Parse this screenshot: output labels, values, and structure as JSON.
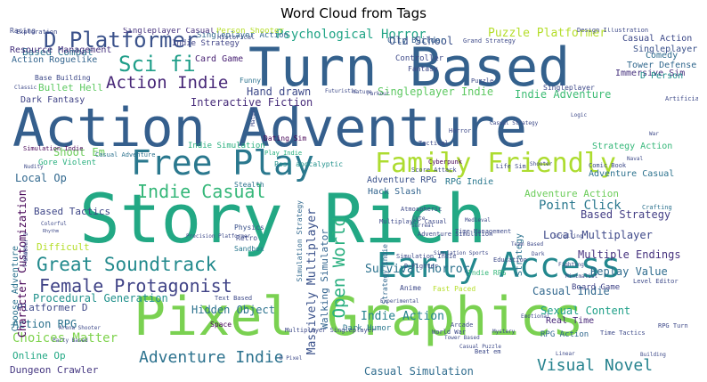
{
  "chart_data": {
    "type": "word_cloud",
    "title": "Word Cloud from Tags",
    "colormap": "viridis",
    "background": "#ffffff",
    "words": [
      {
        "text": "Story Rich",
        "color": "#22a884"
      },
      {
        "text": "Action Adventure",
        "color": "#355f8d"
      },
      {
        "text": "Turn Based",
        "color": "#34618d"
      },
      {
        "text": "Pixel Graphics",
        "color": "#7ad151"
      },
      {
        "text": "Free Play",
        "color": "#2a788e"
      },
      {
        "text": "Family Friendly",
        "color": "#addc30"
      },
      {
        "text": "Early Access",
        "color": "#23888e"
      },
      {
        "text": "Great Soundtrack",
        "color": "#238a8d"
      },
      {
        "text": "Female Protagonist",
        "color": "#414487"
      },
      {
        "text": "D Platformer",
        "color": "#3b528b"
      },
      {
        "text": "Sci fi",
        "color": "#1f9e89"
      },
      {
        "text": "Action Indie",
        "color": "#482878"
      },
      {
        "text": "Indie Casual",
        "color": "#35b779"
      },
      {
        "text": "Adventure Indie",
        "color": "#2c728e"
      },
      {
        "text": "Visual Novel",
        "color": "#26828e"
      },
      {
        "text": "Psychological Horror",
        "color": "#20a486"
      },
      {
        "text": "Open World",
        "color": "#29af7f"
      },
      {
        "text": "Hand drawn",
        "color": "#3e4a89"
      },
      {
        "text": "Interactive Fiction",
        "color": "#472c7a"
      },
      {
        "text": "Singleplayer Indie",
        "color": "#5ec962"
      },
      {
        "text": "Indie Adventure",
        "color": "#3dbc74"
      },
      {
        "text": "Point Click",
        "color": "#2a788e"
      },
      {
        "text": "Local Multiplayer",
        "color": "#3e4989"
      },
      {
        "text": "Multiple Endings",
        "color": "#46327e"
      },
      {
        "text": "Adventure Action",
        "color": "#6ccd5a"
      },
      {
        "text": "Based Strategy",
        "color": "#433e85"
      },
      {
        "text": "Replay Value",
        "color": "#2f6c8e"
      },
      {
        "text": "Casual Indie",
        "color": "#31688e"
      },
      {
        "text": "Sexual Content",
        "color": "#1fa088"
      },
      {
        "text": "Massively Multiplayer",
        "color": "#3b528b"
      },
      {
        "text": "Walking Simulator",
        "color": "#32648e"
      },
      {
        "text": "Survival Horror",
        "color": "#2c728e"
      },
      {
        "text": "Indie Action",
        "color": "#25838e"
      },
      {
        "text": "Choices Matter",
        "color": "#7fd34e"
      },
      {
        "text": "Action RPG",
        "color": "#2c728e"
      },
      {
        "text": "Procedural Generation",
        "color": "#21918c"
      },
      {
        "text": "Hidden Object",
        "color": "#2c728e"
      },
      {
        "text": "Casual Simulation",
        "color": "#2f6c8e"
      },
      {
        "text": "Shoot Em",
        "color": "#6ccd5a"
      },
      {
        "text": "Local Op",
        "color": "#31688e"
      },
      {
        "text": "Based Tactics",
        "color": "#3f4788"
      },
      {
        "text": "Difficult",
        "color": "#b5de2b"
      },
      {
        "text": "Character Customization",
        "color": "#440154"
      },
      {
        "text": "Platformer D",
        "color": "#3e4a89"
      },
      {
        "text": "Online Op",
        "color": "#22a884"
      },
      {
        "text": "Dungeon Crawler",
        "color": "#453781"
      },
      {
        "text": "Choose Adventure",
        "color": "#2c728e"
      },
      {
        "text": "Action Roguelike",
        "color": "#32648e"
      },
      {
        "text": "Based Combat",
        "color": "#2c728e"
      },
      {
        "text": "Bullet Hell",
        "color": "#5ec962"
      },
      {
        "text": "Dark Fantasy",
        "color": "#414487"
      },
      {
        "text": "Resource Management",
        "color": "#46327e"
      },
      {
        "text": "Card Game",
        "color": "#482173"
      },
      {
        "text": "Old School",
        "color": "#3b528b"
      },
      {
        "text": "City Builder",
        "color": "#355f8d"
      },
      {
        "text": "Puzzle Platformer",
        "color": "#b5de2b"
      },
      {
        "text": "Casual Action",
        "color": "#3e4a89"
      },
      {
        "text": "Singleplayer D",
        "color": "#3b528b"
      },
      {
        "text": "Comedy",
        "color": "#2f6c8e"
      },
      {
        "text": "Tower Defense",
        "color": "#31688e"
      },
      {
        "text": "Immersive Sim",
        "color": "#46327e"
      },
      {
        "text": "D Person",
        "color": "#21918c"
      },
      {
        "text": "Dark Humor",
        "color": "#2a788e"
      },
      {
        "text": "Indie Simulation",
        "color": "#2ab07f"
      },
      {
        "text": "Adventure RPG",
        "color": "#3b528b"
      },
      {
        "text": "RPG Indie",
        "color": "#2a788e"
      },
      {
        "text": "Hack Slash",
        "color": "#32648e"
      },
      {
        "text": "Strategy Action",
        "color": "#35b779"
      },
      {
        "text": "Adventure Casual",
        "color": "#2c728e"
      },
      {
        "text": "Controller",
        "color": "#3e4a89"
      },
      {
        "text": "Fantasy",
        "color": "#3e4a89"
      },
      {
        "text": "Funny",
        "color": "#2c728e"
      },
      {
        "text": "Anime",
        "color": "#3e4989"
      },
      {
        "text": "Physics",
        "color": "#3b528b"
      },
      {
        "text": "Retro",
        "color": "#3e4a89"
      },
      {
        "text": "Sandbox",
        "color": "#2a788e"
      },
      {
        "text": "Stealth",
        "color": "#2c728e"
      },
      {
        "text": "Real Time",
        "color": "#482878"
      },
      {
        "text": "RPG Action",
        "color": "#31688e"
      },
      {
        "text": "Strategy",
        "color": "#2c728e"
      },
      {
        "text": "Fast Paced",
        "color": "#b5de2b"
      },
      {
        "text": "Board Game",
        "color": "#414487"
      },
      {
        "text": "Gore Violent",
        "color": "#2ab07f"
      },
      {
        "text": "Dating Sim",
        "color": "#440154"
      },
      {
        "text": "Play Indie",
        "color": "#29af7f"
      },
      {
        "text": "Post apocalyptic",
        "color": "#21918c"
      },
      {
        "text": "Simulation Strategy",
        "color": "#31688e"
      },
      {
        "text": "Simulation Indie",
        "color": "#440154"
      },
      {
        "text": "Casual Adventure",
        "color": "#2c728e"
      },
      {
        "text": "Singleplayer Action",
        "color": "#31688e"
      },
      {
        "text": "Singleplayer Casual",
        "color": "#46327e"
      },
      {
        "text": "Indie Strategy",
        "color": "#414487"
      },
      {
        "text": "Person Shooter",
        "color": "#b5de2b"
      },
      {
        "text": "Base Building",
        "color": "#3e4a89"
      },
      {
        "text": "Space",
        "color": "#440154"
      },
      {
        "text": "Strategy Indie",
        "color": "#31688e"
      },
      {
        "text": "Indie RPG",
        "color": "#35b779"
      },
      {
        "text": "Singleplayer",
        "color": "#3e4989"
      },
      {
        "text": "Crafting",
        "color": "#2c728e"
      },
      {
        "text": "Tactical",
        "color": "#3e4a89"
      },
      {
        "text": "Cyberpunk",
        "color": "#440154"
      },
      {
        "text": "Exploration",
        "color": "#3e4a89"
      },
      {
        "text": "Historical",
        "color": "#3e4a89"
      },
      {
        "text": "Grand Strategy",
        "color": "#3e4a89"
      },
      {
        "text": "Design Illustration",
        "color": "#3e4a89"
      },
      {
        "text": "Score Attack",
        "color": "#3e4a89"
      },
      {
        "text": "Nature",
        "color": "#3e4a89"
      },
      {
        "text": "Futuristic",
        "color": "#3e4a89"
      },
      {
        "text": "Parkour",
        "color": "#3e4a89"
      },
      {
        "text": "Cute",
        "color": "#3e4a89"
      },
      {
        "text": "Medieval",
        "color": "#3e4a89"
      },
      {
        "text": "Education",
        "color": "#3e4a89"
      },
      {
        "text": "Level Editor",
        "color": "#3e4a89"
      },
      {
        "text": "RPG Turn",
        "color": "#3e4a89"
      },
      {
        "text": "Time Tactics",
        "color": "#3e4a89"
      },
      {
        "text": "Life Sim",
        "color": "#3e4a89"
      },
      {
        "text": "Classic",
        "color": "#3e4a89"
      },
      {
        "text": "Arcade",
        "color": "#3e4a89"
      },
      {
        "text": "Beat em",
        "color": "#3e4a89"
      },
      {
        "text": "Precision Platformer",
        "color": "#3e4a89"
      },
      {
        "text": "Atmospheric",
        "color": "#3e4a89"
      },
      {
        "text": "Surreal",
        "color": "#3e4a89"
      },
      {
        "text": "Colorful",
        "color": "#3e4a89"
      },
      {
        "text": "Rhythm",
        "color": "#3e4a89"
      },
      {
        "text": "Mystery",
        "color": "#3e4a89"
      },
      {
        "text": "World War",
        "color": "#3e4a89"
      },
      {
        "text": "Tower Based",
        "color": "#3e4a89"
      },
      {
        "text": "Puzzle",
        "color": "#3e4a89"
      },
      {
        "text": "Artificial Intelligence",
        "color": "#3e4a89"
      },
      {
        "text": "Comic Book",
        "color": "#3e4a89"
      },
      {
        "text": "Naval",
        "color": "#3e4a89"
      },
      {
        "text": "Shooter D",
        "color": "#3e4a89"
      },
      {
        "text": "Violent",
        "color": "#3e4a89"
      },
      {
        "text": "Nudity",
        "color": "#3e4a89"
      },
      {
        "text": "Mature",
        "color": "#3e4a89"
      },
      {
        "text": "Text Based",
        "color": "#3e4a89"
      },
      {
        "text": "Time Management",
        "color": "#3e4a89"
      },
      {
        "text": "Multiplayer Singleplayer",
        "color": "#3e4a89"
      },
      {
        "text": "Arena Shooter",
        "color": "#3e4a89"
      },
      {
        "text": "Experimental",
        "color": "#3e4a89"
      },
      {
        "text": "Simulation Sports",
        "color": "#3e4a89"
      },
      {
        "text": "Party Based",
        "color": "#3e4a89"
      },
      {
        "text": "Casual Puzzle",
        "color": "#3e4a89"
      },
      {
        "text": "Casual Strategy",
        "color": "#3e4a89"
      },
      {
        "text": "Dark",
        "color": "#3e4a89"
      },
      {
        "text": "Scrolling",
        "color": "#3e4a89"
      },
      {
        "text": "Minimalist",
        "color": "#3e4a89"
      },
      {
        "text": "Emotional",
        "color": "#3e4a89"
      },
      {
        "text": "Linear",
        "color": "#3e4a89"
      },
      {
        "text": "Building",
        "color": "#3e4a89"
      },
      {
        "text": "Shooter",
        "color": "#3e4a89"
      },
      {
        "text": "Logic",
        "color": "#3e4a89"
      },
      {
        "text": "War",
        "color": "#3e4a89"
      },
      {
        "text": "Horror",
        "color": "#3e4a89"
      },
      {
        "text": "Adventure Simulation",
        "color": "#3e4a89"
      },
      {
        "text": "Multiplayer Casual",
        "color": "#3e4a89"
      },
      {
        "text": "Simulation Indie",
        "color": "#3e4a89"
      },
      {
        "text": "D Fighter",
        "color": "#3e4a89"
      },
      {
        "text": "D Pixel",
        "color": "#3e4a89"
      },
      {
        "text": "Team Based",
        "color": "#3e4a89"
      },
      {
        "text": "Fighting",
        "color": "#3e4a89"
      },
      {
        "text": "Racing",
        "color": "#3e4a89"
      }
    ]
  }
}
